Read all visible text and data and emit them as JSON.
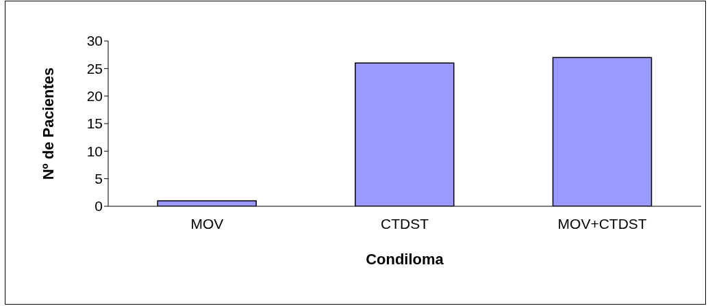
{
  "chart_data": {
    "type": "bar",
    "xlabel": "Condiloma",
    "ylabel": "Nº de Pacientes",
    "categories": [
      "MOV",
      "CTDST",
      "MOV+CTDST"
    ],
    "values": [
      1,
      26,
      27
    ],
    "color": "#9999ff",
    "ylim": [
      0,
      30
    ],
    "yticks": [
      0,
      5,
      10,
      15,
      20,
      25,
      30
    ],
    "grid": false,
    "legend": false
  }
}
